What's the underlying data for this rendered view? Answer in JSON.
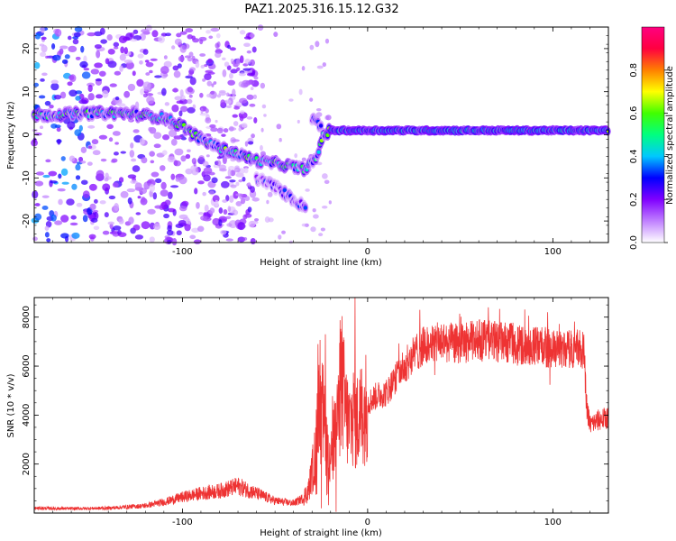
{
  "title": "PAZ1.2025.316.15.12.G32",
  "chart_data": [
    {
      "type": "heatmap",
      "xlabel": "Height of straight line (km)",
      "ylabel": "Frequency (Hz)",
      "xlim": [
        -180,
        130
      ],
      "ylim": [
        -25,
        25
      ],
      "xticks": [
        -100,
        0,
        100
      ],
      "xtick_labels": [
        "-100",
        "0",
        "100"
      ],
      "yticks": [
        -20,
        -10,
        0,
        10,
        20
      ],
      "ytick_labels": [
        "-20",
        "-10",
        "0",
        "10",
        "20"
      ],
      "colorbar": {
        "label": "Normalized spectral amplitude",
        "range": [
          0.0,
          1.0
        ],
        "ticks": [
          0.0,
          0.2,
          0.4,
          0.6,
          0.8
        ],
        "tick_labels": [
          "0.0",
          "0.2",
          "0.4",
          "0.6",
          "0.8"
        ],
        "colors": [
          "#ffffff",
          "#c080ff",
          "#8000ff",
          "#0000ff",
          "#00c8ff",
          "#00ff80",
          "#40ff00",
          "#ffff00",
          "#ff8000",
          "#ff0040",
          "#ff0080"
        ]
      },
      "ridges": [
        {
          "name": "main-trace",
          "points": [
            [
              -180,
              4.5
            ],
            [
              -150,
              5
            ],
            [
              -130,
              5
            ],
            [
              -110,
              4
            ],
            [
              -100,
              2
            ],
            [
              -90,
              -1
            ],
            [
              -80,
              -3
            ],
            [
              -70,
              -4.5
            ],
            [
              -60,
              -6
            ],
            [
              -45,
              -7
            ],
            [
              -35,
              -8
            ],
            [
              -28,
              -6
            ],
            [
              -24,
              0
            ],
            [
              -20,
              1
            ],
            [
              0,
              1
            ],
            [
              50,
              1
            ],
            [
              100,
              1
            ],
            [
              130,
              1
            ]
          ]
        },
        {
          "name": "lower-branch",
          "points": [
            [
              -60,
              -10
            ],
            [
              -50,
              -12
            ],
            [
              -40,
              -15
            ],
            [
              -33,
              -17
            ]
          ]
        },
        {
          "name": "upper-blob",
          "points": [
            [
              -30,
              4
            ],
            [
              -27,
              3
            ],
            [
              -25,
              2
            ]
          ]
        }
      ]
    },
    {
      "type": "line",
      "xlabel": "Height of straight line (km)",
      "ylabel": "SNR (10 * v/v)",
      "xlim": [
        -180,
        130
      ],
      "ylim": [
        0,
        8800
      ],
      "xticks": [
        -100,
        0,
        100
      ],
      "xtick_labels": [
        "-100",
        "0",
        "100"
      ],
      "yticks": [
        2000,
        4000,
        6000,
        8000
      ],
      "ytick_labels": [
        "2000",
        "4000",
        "6000",
        "8000"
      ],
      "color": "#ee3333",
      "series": [
        {
          "name": "SNR envelope",
          "x": [
            -180,
            -160,
            -140,
            -120,
            -110,
            -100,
            -90,
            -80,
            -70,
            -60,
            -50,
            -40,
            -35,
            -32,
            -28,
            -26,
            -24,
            -22,
            -20,
            -18,
            -16,
            -14,
            -12,
            -10,
            -8,
            -6,
            -4,
            -2,
            0,
            5,
            10,
            15,
            20,
            25,
            30,
            40,
            50,
            60,
            70,
            80,
            90,
            100,
            110,
            115,
            117,
            118,
            120,
            125,
            130
          ],
          "y": [
            200,
            180,
            200,
            300,
            450,
            650,
            800,
            900,
            1100,
            800,
            500,
            400,
            600,
            900,
            2500,
            4500,
            4000,
            2500,
            2000,
            3000,
            3800,
            5500,
            4200,
            3500,
            4000,
            3700,
            4000,
            4200,
            4500,
            4800,
            4900,
            5500,
            6000,
            6500,
            6800,
            7000,
            6900,
            7100,
            7000,
            6900,
            6800,
            6700,
            6700,
            6800,
            6500,
            4500,
            3600,
            3800,
            3900
          ]
        }
      ],
      "spikes": [
        {
          "x": -27,
          "y": 6900
        },
        {
          "x": -23,
          "y": 7300
        },
        {
          "x": -7,
          "y": 8800
        },
        {
          "x": 28,
          "y": 8300
        },
        {
          "x": 65,
          "y": 8400
        },
        {
          "x": 97,
          "y": 8200
        }
      ]
    }
  ]
}
